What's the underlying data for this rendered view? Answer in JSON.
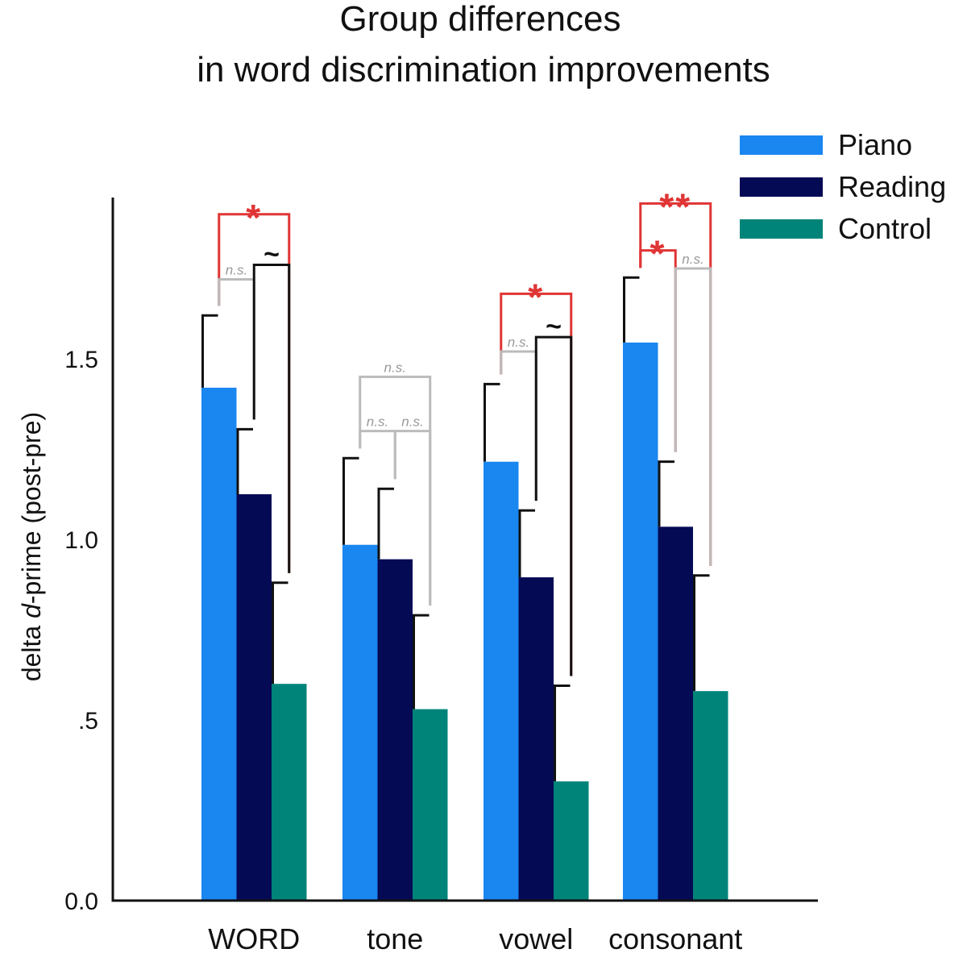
{
  "chart_data": {
    "type": "bar",
    "title_lines": [
      "Group differences",
      "in word discrimination improvements"
    ],
    "ylabel_prefix": "delta ",
    "ylabel_italic": "d",
    "ylabel_suffix": "-prime (post-pre)",
    "ylim": [
      0,
      2.0
    ],
    "yticks": [
      {
        "value": 0,
        "label": "0.0"
      },
      {
        "value": 0.5,
        "label": ".5"
      },
      {
        "value": 1.0,
        "label": "1.0"
      },
      {
        "value": 1.5,
        "label": "1.5"
      }
    ],
    "categories": [
      "WORD",
      "tone",
      "vowel",
      "consonant"
    ],
    "series": [
      {
        "name": "Piano",
        "color": "#1a86f0",
        "values": [
          1.42,
          0.985,
          1.215,
          1.545
        ],
        "errors": [
          0.2,
          0.24,
          0.215,
          0.18
        ]
      },
      {
        "name": "Reading",
        "color": "#050a55",
        "values": [
          1.125,
          0.945,
          0.895,
          1.035
        ],
        "errors": [
          0.18,
          0.195,
          0.185,
          0.18
        ]
      },
      {
        "name": "Control",
        "color": "#00847a",
        "values": [
          0.6,
          0.53,
          0.33,
          0.58
        ],
        "errors": [
          0.28,
          0.26,
          0.265,
          0.32
        ]
      }
    ],
    "legend_position": "top-right",
    "grid": false,
    "annotations": [
      {
        "category": 0,
        "from": 0,
        "to": 2,
        "level": 1.9,
        "label": "*",
        "color": "#e03535"
      },
      {
        "category": 0,
        "from": 0,
        "to": 1,
        "level": 1.72,
        "label": "n.s.",
        "color": "#bbbbbb"
      },
      {
        "category": 0,
        "from": 1,
        "to": 2,
        "level": 1.76,
        "label": "~",
        "color": "#111111"
      },
      {
        "category": 1,
        "from": 0,
        "to": 2,
        "level": 1.45,
        "label": "n.s.",
        "color": "#bbbbbb"
      },
      {
        "category": 1,
        "from": 0,
        "to": 1,
        "level": 1.3,
        "label": "n.s.",
        "color": "#bbbbbb"
      },
      {
        "category": 1,
        "from": 1,
        "to": 2,
        "level": 1.3,
        "label": "n.s.",
        "color": "#bbbbbb"
      },
      {
        "category": 2,
        "from": 0,
        "to": 2,
        "level": 1.68,
        "label": "*",
        "color": "#e03535"
      },
      {
        "category": 2,
        "from": 0,
        "to": 1,
        "level": 1.52,
        "label": "n.s.",
        "color": "#bbbbbb"
      },
      {
        "category": 2,
        "from": 1,
        "to": 2,
        "level": 1.56,
        "label": "~",
        "color": "#111111"
      },
      {
        "category": 3,
        "from": 0,
        "to": 2,
        "level": 1.93,
        "label": "**",
        "color": "#e03535"
      },
      {
        "category": 3,
        "from": 0,
        "to": 1,
        "level": 1.8,
        "label": "*",
        "color": "#e03535"
      },
      {
        "category": 3,
        "from": 1,
        "to": 2,
        "level": 1.75,
        "label": "n.s.",
        "color": "#bbbbbb"
      }
    ]
  }
}
